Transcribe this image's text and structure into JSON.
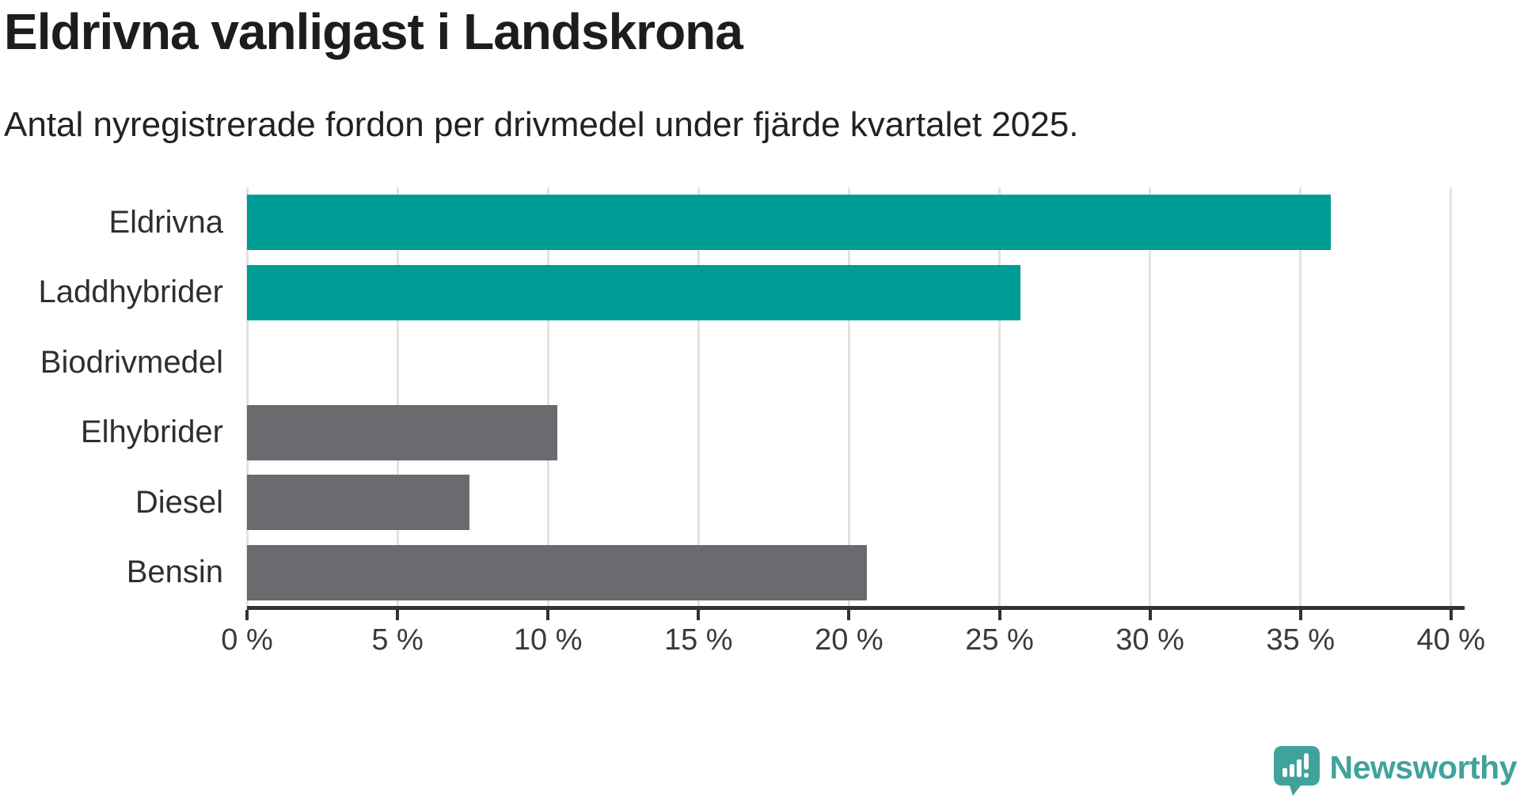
{
  "chart_data": {
    "type": "bar",
    "orientation": "horizontal",
    "title": "Eldrivna vanligast i Landskrona",
    "subtitle": "Antal nyregistrerade fordon per drivmedel under fjärde kvartalet 2025.",
    "categories": [
      "Eldrivna",
      "Laddhybrider",
      "Biodrivmedel",
      "Elhybrider",
      "Diesel",
      "Bensin"
    ],
    "values": [
      36.0,
      25.7,
      0,
      10.3,
      7.4,
      20.6
    ],
    "unit": "%",
    "bar_colors": [
      "#009d96",
      "#009d96",
      "#6b6b6f",
      "#6b6b6f",
      "#6b6b6f",
      "#6b6b6f"
    ],
    "xlim": [
      0,
      40
    ],
    "xticks": [
      0,
      5,
      10,
      15,
      20,
      25,
      30,
      35,
      40
    ],
    "xtick_labels": [
      "0 %",
      "5 %",
      "10 %",
      "15 %",
      "20 %",
      "25 %",
      "30 %",
      "35 %",
      "40 %"
    ],
    "xlabel": "",
    "ylabel": "",
    "grid": true,
    "legend": "none"
  },
  "colors": {
    "highlight_bar": "#009d96",
    "default_bar": "#6b6b6f",
    "gridline": "#e2e2e2",
    "axis": "#333333"
  },
  "branding": {
    "logo_text": "Newsworthy",
    "logo_color": "#3fa39c"
  }
}
